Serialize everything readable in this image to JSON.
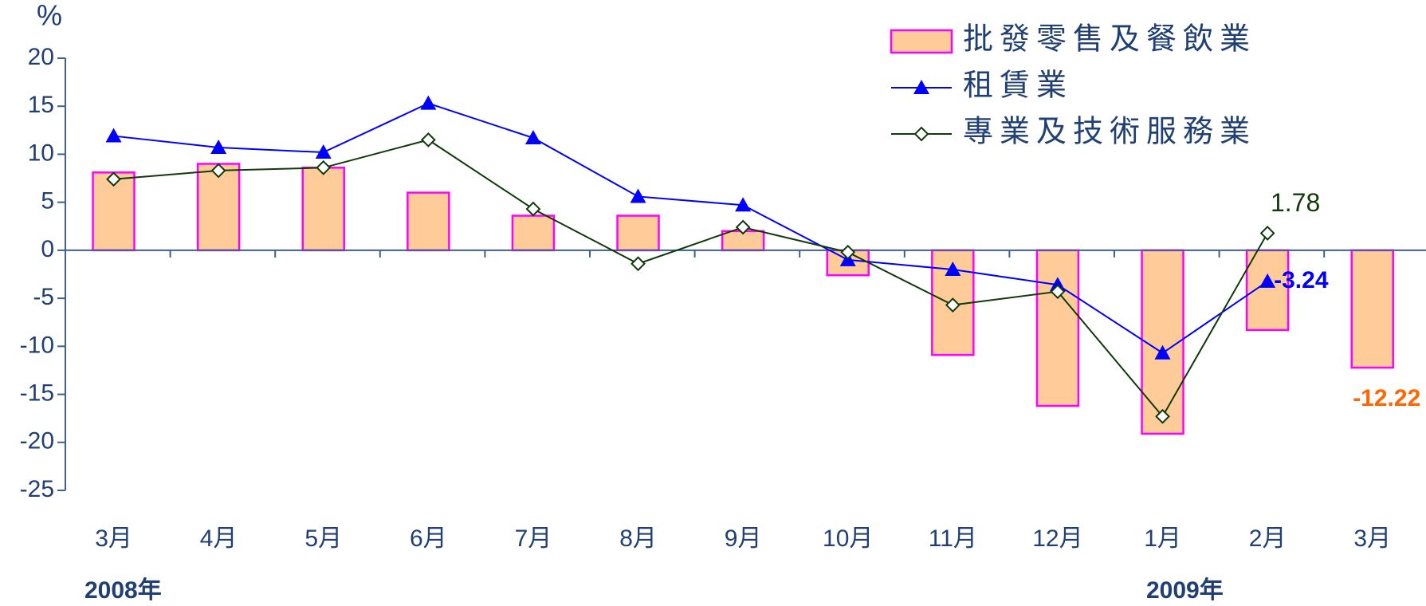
{
  "chart_data": {
    "type": "bar-line",
    "y_unit": "%",
    "categories": [
      "3月",
      "4月",
      "5月",
      "6月",
      "7月",
      "8月",
      "9月",
      "10月",
      "11月",
      "12月",
      "1月",
      "2月",
      "3月"
    ],
    "year_labels": [
      "2008年",
      "2009年"
    ],
    "series": [
      {
        "name": "批發零售及餐飲業",
        "type": "bar",
        "color": "#FFCC99",
        "edge_color": "#FF00FF",
        "values": [
          8.1,
          9.0,
          8.6,
          6.0,
          3.6,
          3.6,
          2.0,
          -2.6,
          -10.9,
          -16.2,
          -19.1,
          -8.3,
          -12.22
        ],
        "value_labels": [
          null,
          null,
          null,
          null,
          null,
          null,
          null,
          null,
          null,
          null,
          null,
          null,
          "-12.22"
        ],
        "label_color": "#FF6600"
      },
      {
        "name": "租賃業",
        "type": "line",
        "marker": "triangle",
        "color": "#0000FF",
        "values": [
          11.9,
          10.7,
          10.2,
          15.3,
          11.7,
          5.6,
          4.7,
          -1.0,
          -2.0,
          -3.6,
          -10.7,
          -3.24,
          null
        ],
        "value_labels": [
          null,
          null,
          null,
          null,
          null,
          null,
          null,
          null,
          null,
          null,
          null,
          "-3.24",
          null
        ],
        "label_color": "#0000FF"
      },
      {
        "name": "專業及技術服務業",
        "type": "line",
        "marker": "diamond",
        "color": "#0F3A0A",
        "values": [
          7.4,
          8.3,
          8.6,
          11.5,
          4.3,
          -1.4,
          2.4,
          -0.2,
          -5.7,
          -4.3,
          -17.3,
          1.78,
          null
        ],
        "value_labels": [
          null,
          null,
          null,
          null,
          null,
          null,
          null,
          null,
          null,
          null,
          null,
          "1.78",
          null
        ],
        "label_color": "#0F3A0A"
      }
    ],
    "ylim": [
      -25,
      20
    ],
    "yticks": [
      -25,
      -20,
      -15,
      -10,
      -5,
      0,
      5,
      10,
      15,
      20
    ],
    "grid": false,
    "legend": "top-right"
  }
}
